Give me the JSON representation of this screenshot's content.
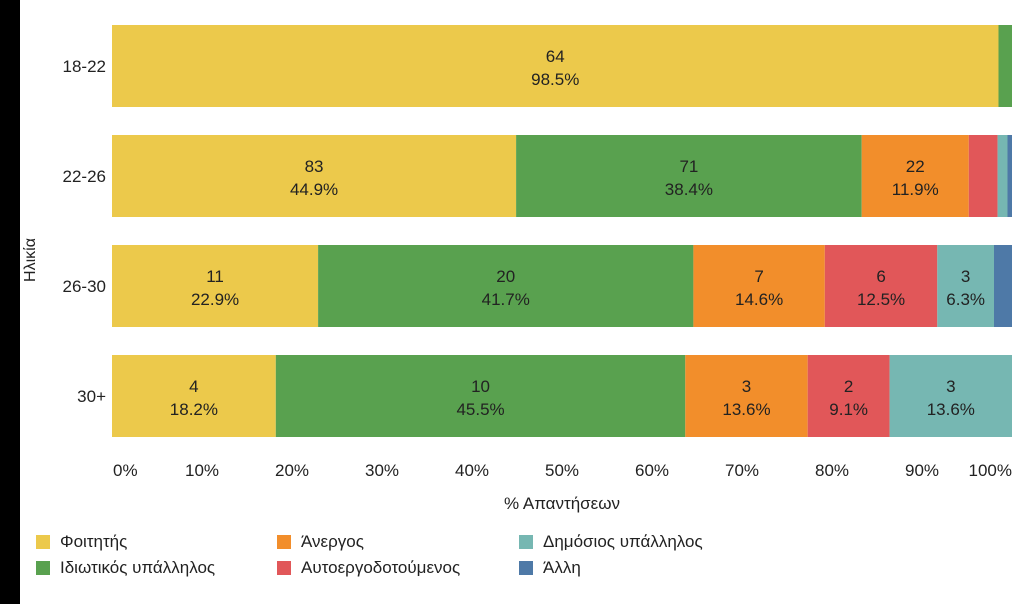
{
  "chart_data": {
    "type": "bar",
    "orientation": "horizontal",
    "stacked": true,
    "ylabel": "Ηλικία",
    "xlabel": "% Απαντήσεων",
    "xlim": [
      0,
      100
    ],
    "xticks": [
      "0%",
      "10%",
      "20%",
      "30%",
      "40%",
      "50%",
      "60%",
      "70%",
      "80%",
      "90%",
      "100%"
    ],
    "categories": [
      "18-22",
      "22-26",
      "26-30",
      "30+"
    ],
    "legend_position": "bottom",
    "series": [
      {
        "name": "Φοιτητής",
        "color": "#ecc94b",
        "counts": [
          64,
          83,
          11,
          4
        ],
        "percents": [
          98.5,
          44.9,
          22.9,
          18.2
        ],
        "labels": [
          [
            "64",
            "98.5%"
          ],
          [
            "83",
            "44.9%"
          ],
          [
            "11",
            "22.9%"
          ],
          [
            "4",
            "18.2%"
          ]
        ]
      },
      {
        "name": "Ιδιωτικός υπάλληλος",
        "color": "#59a14f",
        "counts": [
          null,
          71,
          20,
          10
        ],
        "percents": [
          1.5,
          38.4,
          41.7,
          45.5
        ],
        "labels": [
          null,
          [
            "71",
            "38.4%"
          ],
          [
            "20",
            "41.7%"
          ],
          [
            "10",
            "45.5%"
          ]
        ]
      },
      {
        "name": "Άνεργος",
        "color": "#f28e2b",
        "counts": [
          null,
          22,
          7,
          3
        ],
        "percents": [
          0,
          11.9,
          14.6,
          13.6
        ],
        "labels": [
          null,
          [
            "22",
            "11.9%"
          ],
          [
            "7",
            "14.6%"
          ],
          [
            "3",
            "13.6%"
          ]
        ]
      },
      {
        "name": "Αυτοεργοδοτούμενος",
        "color": "#e15759",
        "counts": [
          null,
          null,
          6,
          2
        ],
        "percents": [
          0,
          3.2,
          12.5,
          9.1
        ],
        "labels": [
          null,
          null,
          [
            "6",
            "12.5%"
          ],
          [
            "2",
            "9.1%"
          ]
        ]
      },
      {
        "name": "Δημόσιος υπάλληλος",
        "color": "#76b7b2",
        "counts": [
          null,
          null,
          3,
          3
        ],
        "percents": [
          0,
          1.1,
          6.3,
          13.6
        ],
        "labels": [
          null,
          null,
          [
            "3",
            "6.3%"
          ],
          [
            "3",
            "13.6%"
          ]
        ]
      },
      {
        "name": "Άλλη",
        "color": "#4e79a7",
        "counts": [
          null,
          null,
          null,
          null
        ],
        "percents": [
          0,
          0.5,
          2.0,
          0
        ],
        "labels": [
          null,
          null,
          null,
          null
        ]
      }
    ],
    "legend": [
      {
        "name": "Φοιτητής",
        "color": "#ecc94b"
      },
      {
        "name": "Άνεργος",
        "color": "#f28e2b"
      },
      {
        "name": "Δημόσιος υπάλληλος",
        "color": "#76b7b2"
      },
      {
        "name": "Ιδιωτικός υπάλληλος",
        "color": "#59a14f"
      },
      {
        "name": "Αυτοεργοδοτούμενος",
        "color": "#e15759"
      },
      {
        "name": "Άλλη",
        "color": "#4e79a7"
      }
    ]
  }
}
